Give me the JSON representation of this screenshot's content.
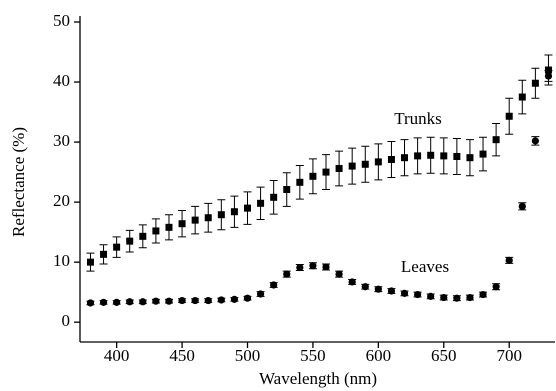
{
  "chart_data": {
    "type": "scatter",
    "x_label": "Wavelength (nm)",
    "y_label": "Reflectance (%)",
    "x": [
      380,
      390,
      400,
      410,
      420,
      430,
      440,
      450,
      460,
      470,
      480,
      490,
      500,
      510,
      520,
      530,
      540,
      550,
      560,
      570,
      580,
      590,
      600,
      610,
      620,
      630,
      640,
      650,
      660,
      670,
      680,
      690,
      700,
      710,
      720,
      730
    ],
    "series": [
      {
        "name": "Trunks",
        "color": "#000000",
        "marker": "square",
        "values": [
          10,
          11.3,
          12.5,
          13.5,
          14.3,
          15.2,
          15.8,
          16.4,
          17,
          17.4,
          17.9,
          18.4,
          19,
          19.8,
          20.8,
          22.1,
          23.3,
          24.3,
          25,
          25.6,
          26,
          26.3,
          26.7,
          27.1,
          27.4,
          27.7,
          27.8,
          27.7,
          27.6,
          27.4,
          28,
          30.4,
          34.3,
          37.5,
          39.8,
          42
        ],
        "errors": [
          1.5,
          1.6,
          1.7,
          1.8,
          1.9,
          2,
          2.1,
          2.2,
          2.3,
          2.4,
          2.5,
          2.6,
          2.7,
          2.7,
          2.8,
          2.8,
          2.8,
          2.9,
          2.9,
          2.9,
          3,
          3,
          3,
          3,
          3,
          3,
          3,
          3,
          3,
          3,
          2.8,
          2.7,
          3,
          2.8,
          2.5,
          2.5
        ]
      },
      {
        "name": "Leaves",
        "color": "#000000",
        "marker": "circle",
        "values": [
          3.2,
          3.3,
          3.3,
          3.4,
          3.4,
          3.5,
          3.5,
          3.6,
          3.6,
          3.6,
          3.7,
          3.8,
          4,
          4.7,
          6.2,
          8,
          9.1,
          9.4,
          9.2,
          8,
          6.7,
          5.9,
          5.5,
          5.2,
          4.8,
          4.6,
          4.3,
          4.1,
          4,
          4.1,
          4.6,
          5.9,
          10.3,
          19.3,
          30.2,
          41
        ],
        "errors": [
          0.3,
          0.3,
          0.3,
          0.3,
          0.3,
          0.3,
          0.3,
          0.3,
          0.3,
          0.3,
          0.3,
          0.3,
          0.3,
          0.4,
          0.4,
          0.5,
          0.5,
          0.5,
          0.5,
          0.5,
          0.4,
          0.4,
          0.4,
          0.4,
          0.4,
          0.4,
          0.4,
          0.4,
          0.4,
          0.4,
          0.4,
          0.5,
          0.5,
          0.6,
          0.7,
          0.9
        ]
      }
    ],
    "annotations": [
      "Trunks",
      "Leaves"
    ],
    "xlim": [
      372,
      735
    ],
    "ylim": [
      -3.3,
      50
    ],
    "xticks": [
      400,
      450,
      500,
      550,
      600,
      650,
      700
    ],
    "yticks": [
      0,
      10,
      20,
      30,
      40,
      50
    ]
  }
}
